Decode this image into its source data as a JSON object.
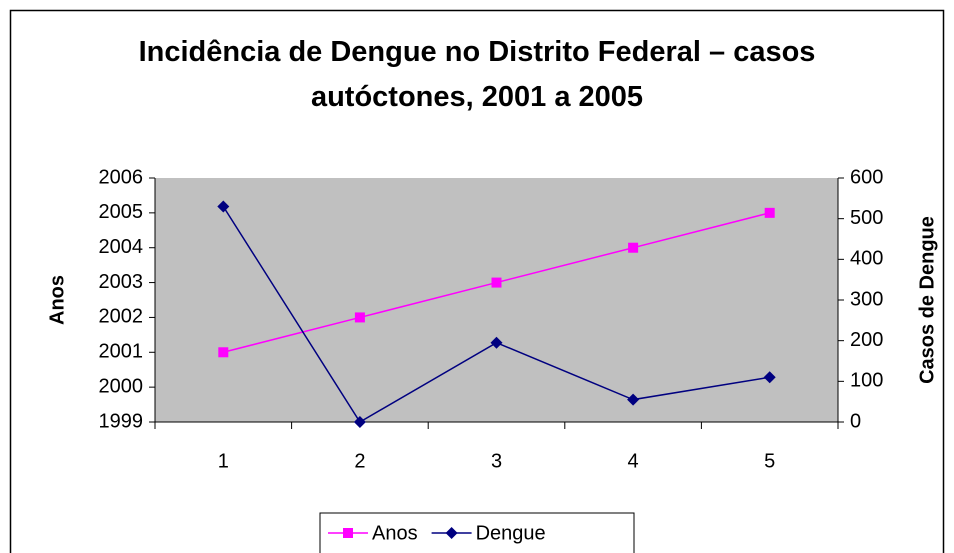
{
  "chart_data": {
    "type": "line",
    "title": "Incidência de Dengue no Distrito Federal – casos autóctones, 2001 a 2005",
    "categories": [
      "1",
      "2",
      "3",
      "4",
      "5"
    ],
    "series": [
      {
        "name": "Anos",
        "color": "#ff00ff",
        "marker": "square",
        "values": [
          2001,
          2002,
          2003,
          2004,
          2005
        ]
      },
      {
        "name": "Dengue",
        "color": "#000080",
        "marker": "diamond",
        "axis": "y2",
        "values": [
          530,
          0,
          195,
          55,
          110
        ]
      }
    ],
    "ylabel": "Anos",
    "y2label": "Casos de Dengue",
    "ylim": [
      1999,
      2006
    ],
    "yticks": [
      1999,
      2000,
      2001,
      2002,
      2003,
      2004,
      2005,
      2006
    ],
    "y2lim": [
      0,
      600
    ],
    "y2ticks": [
      0,
      100,
      200,
      300,
      400,
      500,
      600
    ],
    "legend": "bottom",
    "plot_background": "#c0c0c0"
  }
}
